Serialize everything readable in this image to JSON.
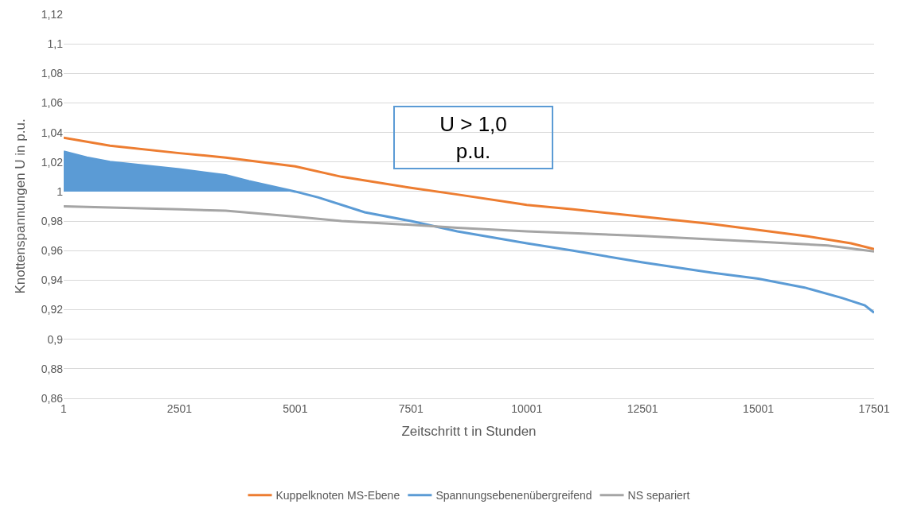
{
  "chart_data": {
    "type": "line",
    "xlabel": "Zeitschritt t in Stunden",
    "ylabel": "Knottenspannungen U in p.u.",
    "xlim": [
      1,
      17501
    ],
    "xticks": [
      1,
      2501,
      5001,
      7501,
      10001,
      12501,
      15001,
      17501
    ],
    "ylim": [
      0.86,
      1.12
    ],
    "yticks": [
      {
        "value": 0.86,
        "label": "0,86"
      },
      {
        "value": 0.88,
        "label": "0,88"
      },
      {
        "value": 0.9,
        "label": "0,9"
      },
      {
        "value": 0.92,
        "label": "0,92"
      },
      {
        "value": 0.94,
        "label": "0,94"
      },
      {
        "value": 0.96,
        "label": "0,96"
      },
      {
        "value": 0.98,
        "label": "0,98"
      },
      1,
      {
        "value": 1.02,
        "label": "1,02"
      },
      {
        "value": 1.04,
        "label": "1,04"
      },
      {
        "value": 1.06,
        "label": "1,06"
      },
      {
        "value": 1.08,
        "label": "1,08"
      },
      {
        "value": 1.1,
        "label": "1,1"
      },
      {
        "value": 1.12,
        "label": "1,12"
      }
    ],
    "grid": "y",
    "legend": "bottom",
    "marker": "none",
    "line_style": "solid",
    "annotations": [
      "U > 1,0 p.u."
    ],
    "series": [
      {
        "name": "Kuppelknoten MS-Ebene",
        "color": "#ed7d31",
        "x": [
          1,
          1001,
          2501,
          3501,
          5001,
          6001,
          7501,
          8501,
          10001,
          11001,
          12501,
          14001,
          15001,
          16001,
          17001,
          17501
        ],
        "values": [
          1.0365,
          1.031,
          1.026,
          1.023,
          1.017,
          1.01,
          1.0025,
          0.998,
          0.991,
          0.988,
          0.983,
          0.978,
          0.974,
          0.97,
          0.965,
          0.961
        ]
      },
      {
        "name": "Spannungsebenenübergreifend",
        "color": "#5b9bd5",
        "x": [
          1,
          501,
          1001,
          2501,
          3501,
          4001,
          5001,
          5501,
          6501,
          7501,
          8501,
          10001,
          11001,
          12501,
          14001,
          15001,
          16001,
          16801,
          17301,
          17501
        ],
        "values": [
          1.027,
          1.023,
          1.02,
          1.015,
          1.011,
          1.007,
          1.0,
          0.996,
          0.986,
          0.98,
          0.973,
          0.965,
          0.96,
          0.952,
          0.945,
          0.941,
          0.935,
          0.928,
          0.923,
          0.918
        ],
        "lower": [
          1,
          1,
          1,
          1,
          1,
          1,
          1,
          null,
          null,
          null,
          null,
          null,
          null,
          null,
          null,
          null,
          null,
          null,
          null,
          null
        ],
        "upper": [
          1.027,
          1.023,
          1.02,
          1.015,
          1.011,
          1.007,
          1.0,
          null,
          null,
          null,
          null,
          null,
          null,
          null,
          null,
          null,
          null,
          null,
          null,
          null
        ]
      },
      {
        "name": "NS separiert",
        "color": "#a5a5a5",
        "x": [
          1,
          2501,
          3501,
          5001,
          6001,
          7501,
          8501,
          10001,
          12501,
          15001,
          16501,
          17501
        ],
        "values": [
          0.99,
          0.988,
          0.987,
          0.983,
          0.98,
          0.9775,
          0.9755,
          0.973,
          0.97,
          0.966,
          0.9635,
          0.9595
        ]
      }
    ]
  }
}
